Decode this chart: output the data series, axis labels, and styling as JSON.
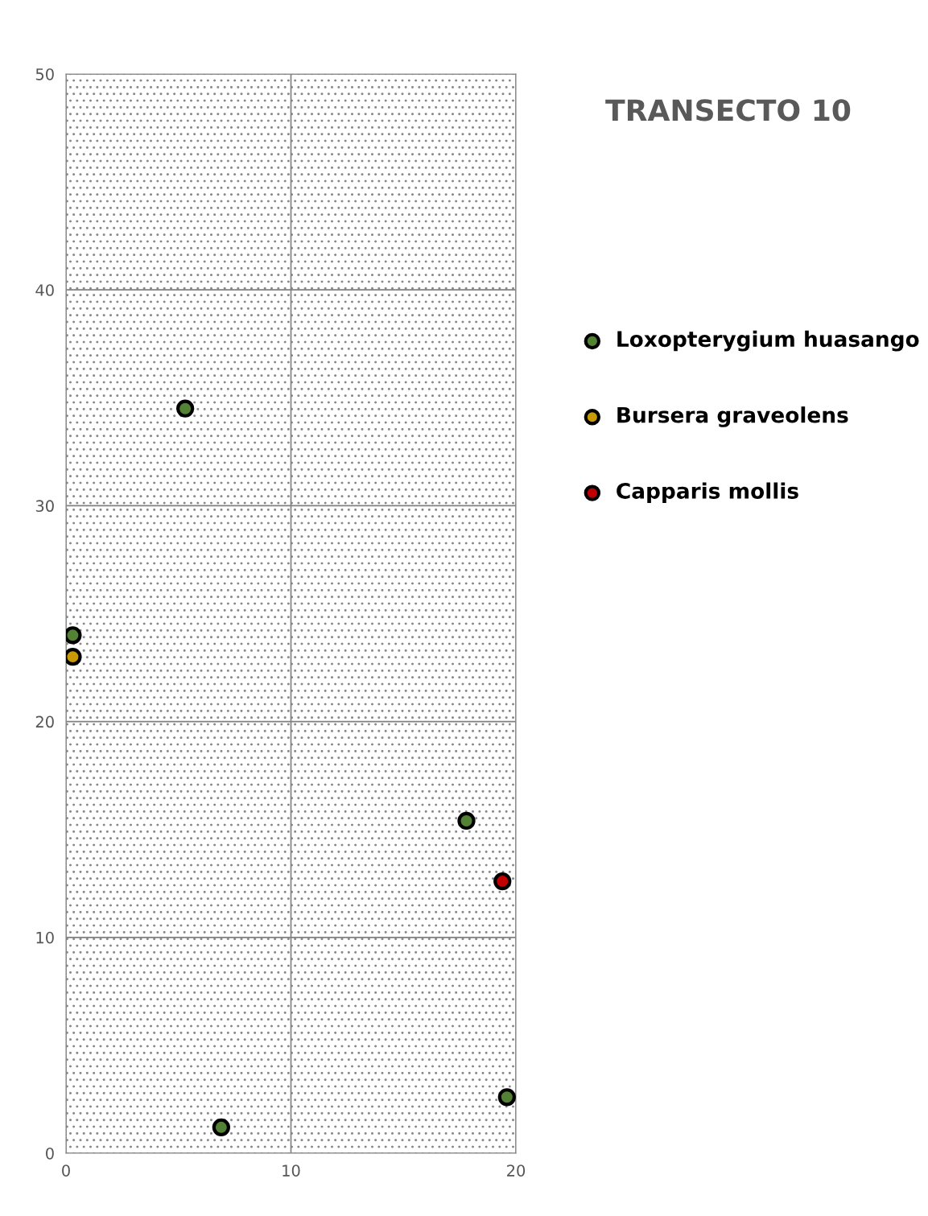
{
  "chart_data": {
    "type": "scatter",
    "title": "TRANSECTO 10",
    "series": [
      {
        "name": "Loxopterygium huasango",
        "color": "#548235",
        "x": [
          5.3,
          0.3,
          17.8,
          19.6,
          6.9
        ],
        "values": [
          34.5,
          24.0,
          15.4,
          2.6,
          1.2
        ]
      },
      {
        "name": "Bursera graveolens",
        "color": "#c99a06",
        "x": [
          0.3
        ],
        "values": [
          23.0
        ]
      },
      {
        "name": "Capparis mollis",
        "color": "#c00000",
        "x": [
          19.4
        ],
        "values": [
          12.6
        ]
      }
    ],
    "xlim": [
      0,
      20
    ],
    "xticks": [
      0,
      10,
      20
    ],
    "ylim": [
      0,
      50
    ],
    "yticks": [
      0,
      10,
      20,
      30,
      40,
      50
    ],
    "grid": true,
    "legend": "right",
    "marker": "circle"
  }
}
